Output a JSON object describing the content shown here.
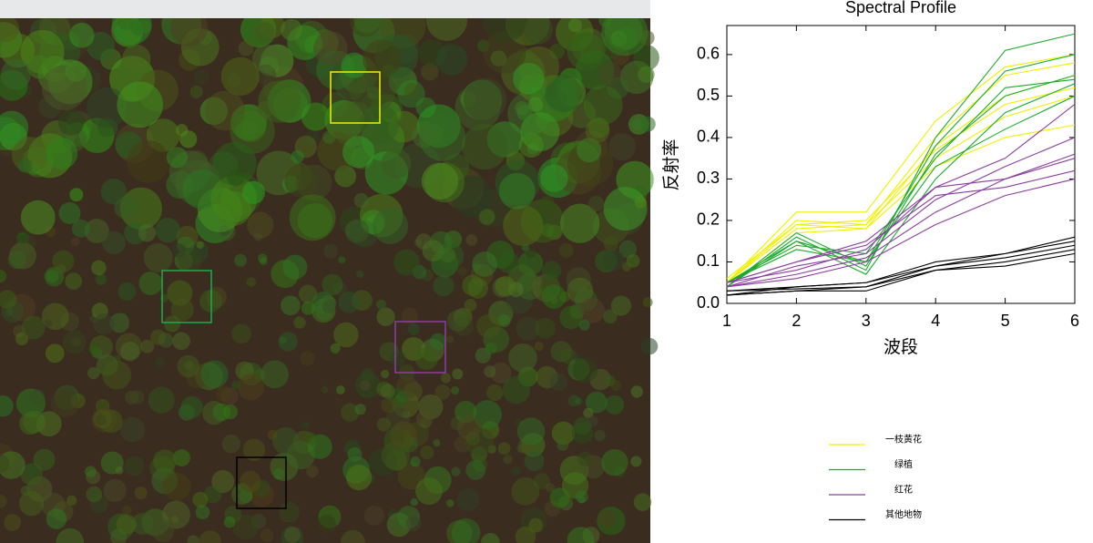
{
  "chart_data": {
    "type": "line",
    "title": "Spectral Profile",
    "x_label": "波段",
    "y_label": "反射率",
    "x": [
      1,
      2,
      3,
      4,
      5,
      6
    ],
    "xlim": [
      1,
      6
    ],
    "xticks": [
      1,
      2,
      3,
      4,
      5,
      6
    ],
    "ylim": [
      0,
      0.67
    ],
    "yticks": [
      {
        "value": 0,
        "label": "0.0"
      },
      0.1,
      0.2,
      0.3,
      0.4,
      0.5,
      0.6
    ],
    "series": [
      {
        "name": "一枝黄花",
        "color": "#f0f000",
        "lines": [
          [
            0.05,
            0.22,
            0.22,
            0.44,
            0.57,
            0.6
          ],
          [
            0.05,
            0.2,
            0.19,
            0.4,
            0.55,
            0.58
          ],
          [
            0.06,
            0.19,
            0.18,
            0.38,
            0.5,
            0.55
          ],
          [
            0.05,
            0.18,
            0.19,
            0.35,
            0.45,
            0.5
          ],
          [
            0.04,
            0.17,
            0.18,
            0.33,
            0.4,
            0.43
          ],
          [
            0.05,
            0.19,
            0.2,
            0.37,
            0.48,
            0.52
          ]
        ]
      },
      {
        "name": "绿植",
        "color": "#1aab2a",
        "lines": [
          [
            0.04,
            0.16,
            0.08,
            0.4,
            0.61,
            0.65
          ],
          [
            0.05,
            0.15,
            0.1,
            0.38,
            0.56,
            0.6
          ],
          [
            0.04,
            0.17,
            0.09,
            0.36,
            0.5,
            0.55
          ],
          [
            0.05,
            0.14,
            0.12,
            0.35,
            0.52,
            0.54
          ],
          [
            0.04,
            0.15,
            0.07,
            0.3,
            0.46,
            0.53
          ],
          [
            0.05,
            0.13,
            0.1,
            0.33,
            0.42,
            0.5
          ]
        ]
      },
      {
        "name": "红花",
        "color": "#8a3fa0",
        "lines": [
          [
            0.05,
            0.1,
            0.15,
            0.28,
            0.35,
            0.48
          ],
          [
            0.04,
            0.09,
            0.12,
            0.25,
            0.33,
            0.4
          ],
          [
            0.05,
            0.08,
            0.13,
            0.28,
            0.3,
            0.36
          ],
          [
            0.04,
            0.07,
            0.11,
            0.22,
            0.3,
            0.35
          ],
          [
            0.05,
            0.1,
            0.14,
            0.26,
            0.28,
            0.32
          ],
          [
            0.04,
            0.06,
            0.1,
            0.19,
            0.26,
            0.3
          ]
        ]
      },
      {
        "name": "其他地物",
        "color": "#000000",
        "lines": [
          [
            0.02,
            0.04,
            0.05,
            0.09,
            0.12,
            0.16
          ],
          [
            0.03,
            0.035,
            0.04,
            0.09,
            0.11,
            0.14
          ],
          [
            0.02,
            0.03,
            0.03,
            0.08,
            0.1,
            0.13
          ],
          [
            0.03,
            0.04,
            0.05,
            0.1,
            0.12,
            0.15
          ],
          [
            0.02,
            0.03,
            0.04,
            0.08,
            0.09,
            0.12
          ]
        ]
      }
    ]
  }
}
